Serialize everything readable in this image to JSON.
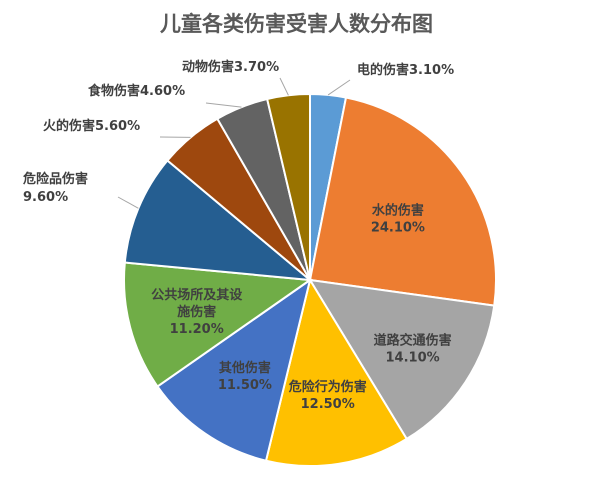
{
  "chart_data": {
    "type": "pie",
    "title": "儿童各类伤害受害人数分布图",
    "start_angle_deg": 0,
    "direction": "clockwise",
    "legend": "none",
    "slices": [
      {
        "label": "电的伤害",
        "value": 3.1,
        "display": "3.10%",
        "color": "#5B9BD5",
        "label_placement": "outside"
      },
      {
        "label": "水的伤害",
        "value": 24.1,
        "display": "24.10%",
        "color": "#ED7D31",
        "label_placement": "inside"
      },
      {
        "label": "道路交通伤害",
        "value": 14.1,
        "display": "14.10%",
        "color": "#A5A5A5",
        "label_placement": "inside"
      },
      {
        "label": "危险行为伤害",
        "value": 12.5,
        "display": "12.50%",
        "color": "#FFC000",
        "label_placement": "inside"
      },
      {
        "label": "其他伤害",
        "value": 11.5,
        "display": "11.50%",
        "color": "#4472C4",
        "label_placement": "inside"
      },
      {
        "label": "公共场所及其设施伤害",
        "value": 11.2,
        "display": "11.20%",
        "color": "#70AD47",
        "label_placement": "inside"
      },
      {
        "label": "危险品伤害",
        "value": 9.6,
        "display": "9.60%",
        "color": "#255E91",
        "label_placement": "outside"
      },
      {
        "label": "火的伤害",
        "value": 5.6,
        "display": "5.60%",
        "color": "#9E480E",
        "label_placement": "outside"
      },
      {
        "label": "食物伤害",
        "value": 4.6,
        "display": "4.60%",
        "color": "#636363",
        "label_placement": "outside"
      },
      {
        "label": "动物伤害",
        "value": 3.7,
        "display": "3.70%",
        "color": "#997300",
        "label_placement": "outside"
      }
    ]
  }
}
